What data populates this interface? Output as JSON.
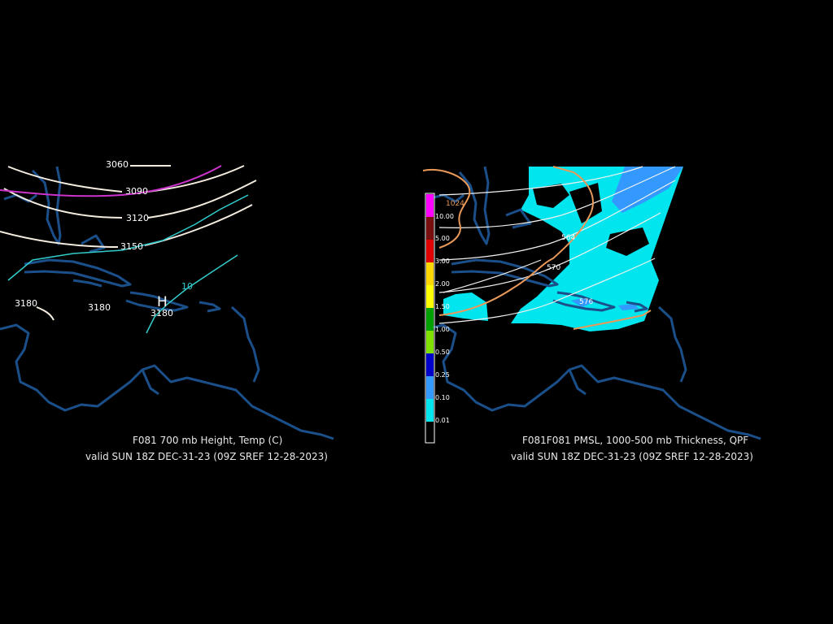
{
  "panel_left": {
    "title": "F081 700 mb Height, Temp (C)",
    "valid": "valid SUN 18Z DEC-31-23 (09Z SREF 12-28-2023)",
    "height_labels": [
      "3060",
      "3090",
      "3120",
      "3150",
      "3180",
      "3180",
      "3180"
    ],
    "temp_label": "10",
    "high_marker": "H",
    "colors": {
      "height": "#f5ece0",
      "temp_warm": "#cc33cc",
      "temp_cool": "#33cccc",
      "coast": "#1a4f8a"
    }
  },
  "panel_right": {
    "title_overlap": "F081F081 PMSL, 1000-500 mb Thickness, QPF",
    "valid": "valid SUN 18Z DEC-31-23 (09Z SREF 12-28-2023)",
    "pressure_label": "1024",
    "thickness_labels": [
      "564",
      "570",
      "576"
    ],
    "qpf_legend": [
      {
        "label": "10.00",
        "color": "#ff00ff"
      },
      {
        "label": "5.00",
        "color": "#7a0f0f"
      },
      {
        "label": "3.00",
        "color": "#e00000"
      },
      {
        "label": "2.00",
        "color": "#ffd700"
      },
      {
        "label": "1.50",
        "color": "#ffff00"
      },
      {
        "label": "1.00",
        "color": "#00a000"
      },
      {
        "label": "0.50",
        "color": "#80e000"
      },
      {
        "label": "0.25",
        "color": "#0000cc"
      },
      {
        "label": "0.10",
        "color": "#3399ff"
      },
      {
        "label": "0.01",
        "color": "#00e5ee"
      }
    ],
    "colors": {
      "thickness": "#f2f2f2",
      "pressure": "#e8995a",
      "qpf_light": "#00e5ee",
      "qpf_mid": "#3399ff"
    }
  }
}
